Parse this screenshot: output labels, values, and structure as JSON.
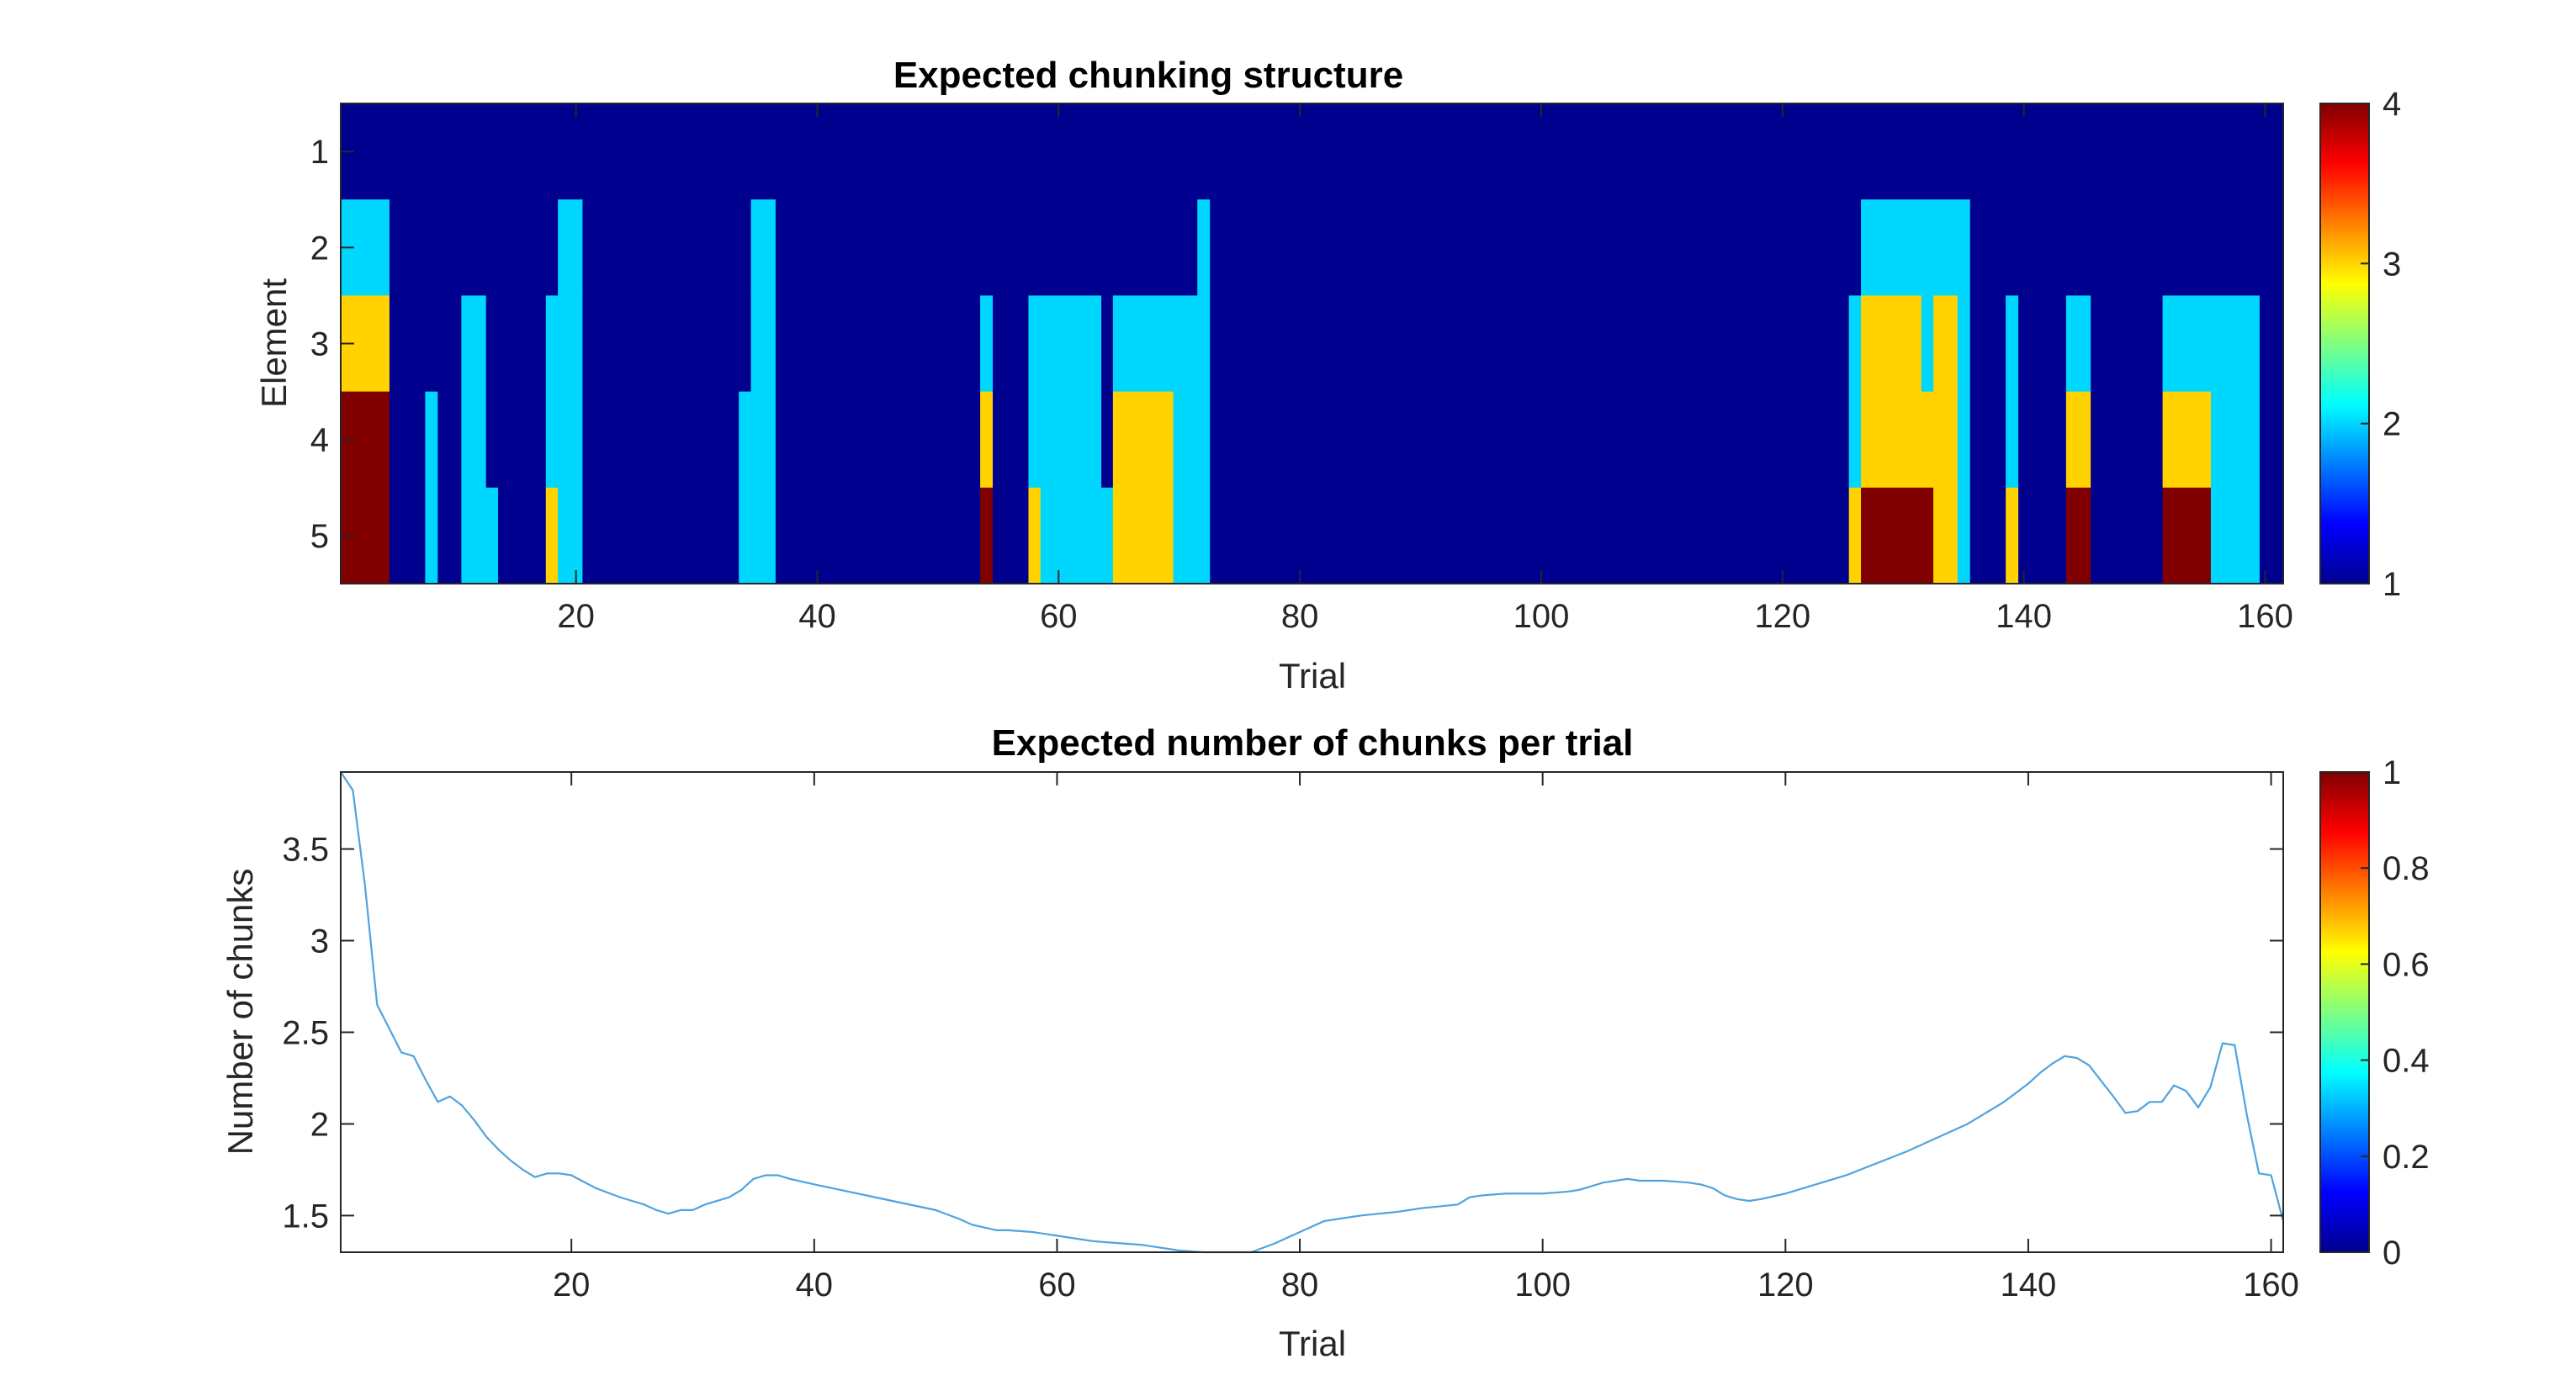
{
  "chart_data": [
    {
      "type": "heatmap",
      "title": "Expected chunking structure",
      "xlabel": "Trial",
      "ylabel": "Element",
      "xlim": [
        0.5,
        161.5
      ],
      "ylim": [
        0.5,
        5.5
      ],
      "y_reversed": true,
      "xticks": [
        20,
        40,
        60,
        80,
        100,
        120,
        140,
        160
      ],
      "yticks": [
        1,
        2,
        3,
        4,
        5
      ],
      "colorbar": {
        "range": [
          1,
          4
        ],
        "ticks": [
          1,
          2,
          3,
          4
        ],
        "colormap": "jet"
      },
      "level_colors": {
        "1": "#00008f",
        "2": "#00d7ff",
        "3": "#ffd200",
        "4": "#800000"
      },
      "background_value": 1,
      "segments": [
        {
          "element": 1,
          "runs": []
        },
        {
          "element": 2,
          "runs": [
            [
              1,
              4,
              2
            ],
            [
              19,
              20,
              2
            ],
            [
              35,
              36,
              2
            ],
            [
              72,
              72,
              2
            ],
            [
              127,
              135,
              2
            ]
          ]
        },
        {
          "element": 3,
          "runs": [
            [
              1,
              4,
              3
            ],
            [
              11,
              12,
              2
            ],
            [
              18,
              18,
              2
            ],
            [
              19,
              20,
              2
            ],
            [
              35,
              36,
              2
            ],
            [
              54,
              54,
              2
            ],
            [
              58,
              63,
              2
            ],
            [
              65,
              72,
              2
            ],
            [
              126,
              126,
              2
            ],
            [
              127,
              131,
              3
            ],
            [
              132,
              132,
              2
            ],
            [
              133,
              134,
              3
            ],
            [
              135,
              135,
              2
            ],
            [
              139,
              139,
              2
            ],
            [
              144,
              145,
              2
            ],
            [
              152,
              159,
              2
            ]
          ]
        },
        {
          "element": 4,
          "runs": [
            [
              1,
              4,
              4
            ],
            [
              8,
              8,
              2
            ],
            [
              11,
              12,
              2
            ],
            [
              18,
              18,
              2
            ],
            [
              19,
              20,
              2
            ],
            [
              34,
              34,
              2
            ],
            [
              35,
              36,
              2
            ],
            [
              54,
              54,
              3
            ],
            [
              58,
              63,
              2
            ],
            [
              65,
              69,
              3
            ],
            [
              70,
              72,
              2
            ],
            [
              126,
              126,
              2
            ],
            [
              127,
              134,
              3
            ],
            [
              135,
              135,
              2
            ],
            [
              139,
              139,
              2
            ],
            [
              144,
              145,
              3
            ],
            [
              152,
              155,
              3
            ],
            [
              156,
              159,
              2
            ]
          ]
        },
        {
          "element": 5,
          "runs": [
            [
              1,
              4,
              4
            ],
            [
              8,
              8,
              2
            ],
            [
              11,
              12,
              2
            ],
            [
              13,
              13,
              2
            ],
            [
              18,
              18,
              3
            ],
            [
              19,
              20,
              2
            ],
            [
              34,
              34,
              2
            ],
            [
              35,
              36,
              2
            ],
            [
              54,
              54,
              4
            ],
            [
              58,
              58,
              3
            ],
            [
              59,
              63,
              2
            ],
            [
              64,
              64,
              2
            ],
            [
              65,
              69,
              3
            ],
            [
              70,
              72,
              2
            ],
            [
              126,
              126,
              3
            ],
            [
              127,
              132,
              4
            ],
            [
              133,
              134,
              3
            ],
            [
              135,
              135,
              2
            ],
            [
              139,
              139,
              3
            ],
            [
              144,
              145,
              4
            ],
            [
              152,
              155,
              4
            ],
            [
              156,
              159,
              2
            ]
          ]
        }
      ]
    },
    {
      "type": "line",
      "title": "Expected number of chunks per trial",
      "xlabel": "Trial",
      "ylabel": "Number of chunks",
      "xlim": [
        1,
        161
      ],
      "ylim": [
        1.3,
        3.92
      ],
      "xticks": [
        20,
        40,
        60,
        80,
        100,
        120,
        140,
        160
      ],
      "yticks": [
        1.5,
        2,
        2.5,
        3,
        3.5
      ],
      "ytick_labels": [
        "1.5",
        "2",
        "2.5",
        "3",
        "3.5"
      ],
      "colorbar": {
        "range": [
          0,
          1
        ],
        "ticks": [
          0,
          0.2,
          0.4,
          0.6,
          0.8,
          1
        ],
        "tick_labels": [
          "0",
          "0.2",
          "0.4",
          "0.6",
          "0.8",
          "1"
        ],
        "colormap": "jet"
      },
      "line_color": "#4fa3de",
      "x": [
        1,
        2,
        3,
        4,
        5,
        6,
        7,
        8,
        9,
        10,
        11,
        12,
        13,
        14,
        15,
        16,
        17,
        18,
        19,
        20,
        22,
        24,
        26,
        27,
        28,
        29,
        30,
        31,
        32,
        33,
        34,
        35,
        36,
        37,
        38,
        40,
        45,
        50,
        52,
        53,
        55,
        56,
        58,
        59,
        60,
        62,
        63,
        65,
        67,
        68,
        70,
        72,
        74,
        76,
        78,
        80,
        82,
        83,
        85,
        88,
        89,
        90,
        93,
        94,
        95,
        97,
        100,
        102,
        103,
        104,
        105,
        106,
        107,
        108,
        110,
        112,
        113,
        114,
        115,
        116,
        117,
        118,
        120,
        125,
        130,
        135,
        138,
        140,
        141,
        142,
        143,
        144,
        145,
        147,
        148,
        149,
        150,
        151,
        152,
        153,
        154,
        155,
        156,
        157,
        158,
        159,
        160,
        161
      ],
      "y": [
        3.92,
        3.82,
        3.3,
        2.65,
        2.52,
        2.39,
        2.37,
        2.24,
        2.12,
        2.15,
        2.1,
        2.02,
        1.93,
        1.86,
        1.8,
        1.75,
        1.71,
        1.73,
        1.73,
        1.72,
        1.65,
        1.6,
        1.56,
        1.53,
        1.51,
        1.53,
        1.53,
        1.56,
        1.58,
        1.6,
        1.64,
        1.7,
        1.72,
        1.72,
        1.7,
        1.67,
        1.6,
        1.53,
        1.48,
        1.45,
        1.42,
        1.42,
        1.41,
        1.4,
        1.39,
        1.37,
        1.36,
        1.35,
        1.34,
        1.33,
        1.31,
        1.3,
        1.3,
        1.3,
        1.35,
        1.41,
        1.47,
        1.48,
        1.5,
        1.52,
        1.53,
        1.54,
        1.56,
        1.6,
        1.61,
        1.62,
        1.62,
        1.63,
        1.64,
        1.66,
        1.68,
        1.69,
        1.7,
        1.69,
        1.69,
        1.68,
        1.67,
        1.65,
        1.61,
        1.59,
        1.58,
        1.59,
        1.62,
        1.72,
        1.85,
        2.0,
        2.12,
        2.22,
        2.28,
        2.33,
        2.37,
        2.36,
        2.32,
        2.15,
        2.06,
        2.07,
        2.12,
        2.12,
        2.21,
        2.18,
        2.09,
        2.2,
        2.44,
        2.43,
        2.05,
        1.73,
        1.72,
        1.47
      ]
    }
  ]
}
